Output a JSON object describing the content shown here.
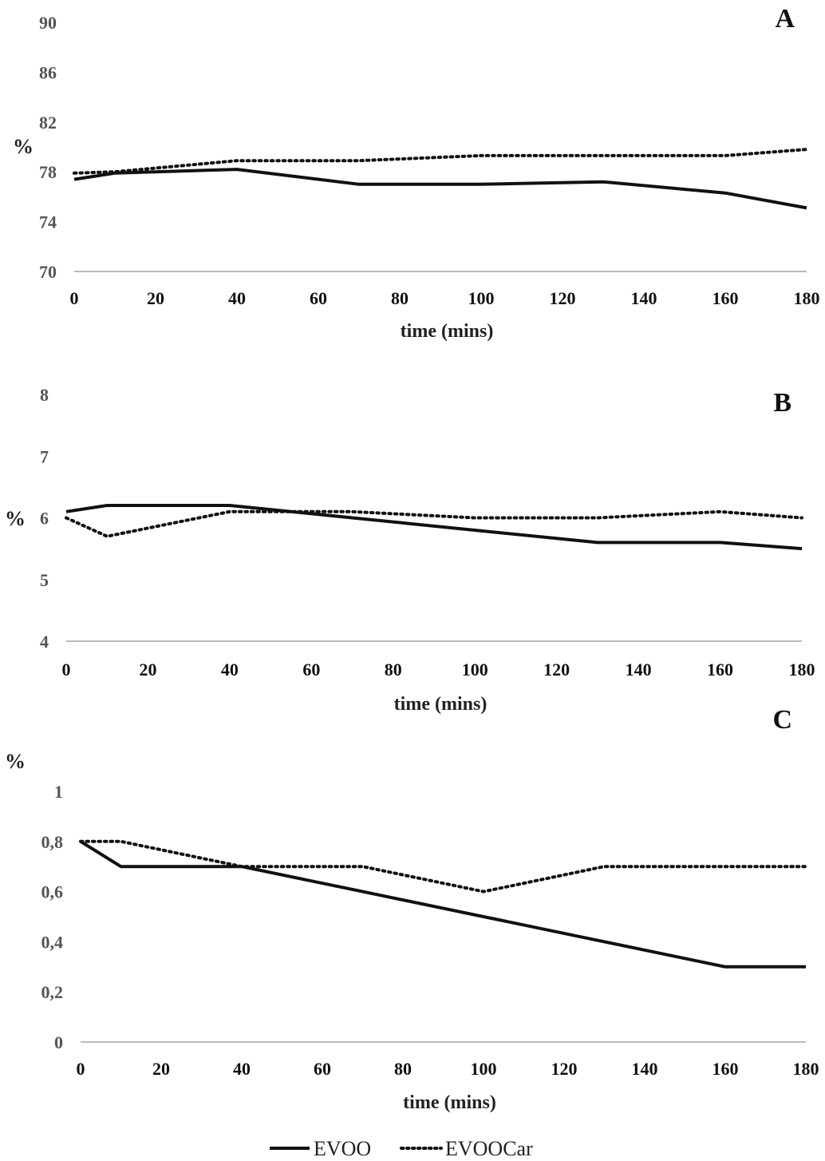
{
  "legend": {
    "solid_label": "EVOO",
    "dotted_label": "EVOOCar"
  },
  "colors": {
    "line": "#111111",
    "axis": "#bbbbbb",
    "tick_text": "#555555"
  },
  "chart_data": [
    {
      "type": "line",
      "panel": "A",
      "xlabel": "time (mins)",
      "ylabel": "%",
      "xlim": [
        0,
        180
      ],
      "ylim": [
        70,
        90
      ],
      "xticks": [
        "0",
        "20",
        "40",
        "60",
        "80",
        "100",
        "120",
        "140",
        "160",
        "180"
      ],
      "yticks": [
        "70",
        "74",
        "78",
        "82",
        "86",
        "90"
      ],
      "x": [
        0,
        10,
        40,
        70,
        100,
        130,
        160,
        180
      ],
      "series": [
        {
          "name": "EVOO",
          "style": "solid",
          "values": [
            77.4,
            77.9,
            78.2,
            77.0,
            77.0,
            77.2,
            76.3,
            75.1
          ]
        },
        {
          "name": "EVOOCar",
          "style": "dotted",
          "values": [
            77.9,
            78.0,
            78.9,
            78.9,
            79.3,
            79.3,
            79.3,
            79.8
          ]
        }
      ],
      "grid": false,
      "legend": "bottom"
    },
    {
      "type": "line",
      "panel": "B",
      "xlabel": "time (mins)",
      "ylabel": "%",
      "xlim": [
        0,
        180
      ],
      "ylim": [
        4,
        8
      ],
      "xticks": [
        "0",
        "20",
        "40",
        "60",
        "80",
        "100",
        "120",
        "140",
        "160",
        "180"
      ],
      "yticks": [
        "4",
        "5",
        "6",
        "7",
        "8"
      ],
      "x": [
        0,
        10,
        40,
        70,
        100,
        130,
        160,
        180
      ],
      "series": [
        {
          "name": "EVOO",
          "style": "solid",
          "values": [
            6.1,
            6.2,
            6.2,
            6.0,
            5.8,
            5.6,
            5.6,
            5.5
          ]
        },
        {
          "name": "EVOOCar",
          "style": "dotted",
          "values": [
            6.0,
            5.7,
            6.1,
            6.1,
            6.0,
            6.0,
            6.1,
            6.0
          ]
        }
      ],
      "grid": false,
      "legend": "bottom"
    },
    {
      "type": "line",
      "panel": "C",
      "xlabel": "time (mins)",
      "ylabel": "%",
      "xlim": [
        0,
        180
      ],
      "ylim": [
        0,
        1
      ],
      "xticks": [
        "0",
        "20",
        "40",
        "60",
        "80",
        "100",
        "120",
        "140",
        "160",
        "180"
      ],
      "yticks": [
        "0",
        "0,2",
        "0,4",
        "0,6",
        "0,8",
        "1"
      ],
      "x": [
        0,
        10,
        40,
        70,
        100,
        130,
        160,
        180
      ],
      "series": [
        {
          "name": "EVOO",
          "style": "solid",
          "values": [
            0.8,
            0.7,
            0.7,
            0.6,
            0.5,
            0.4,
            0.3,
            0.3
          ]
        },
        {
          "name": "EVOOCar",
          "style": "dotted",
          "values": [
            0.8,
            0.8,
            0.7,
            0.7,
            0.6,
            0.7,
            0.7,
            0.7
          ]
        }
      ],
      "grid": false,
      "legend": "bottom"
    }
  ]
}
